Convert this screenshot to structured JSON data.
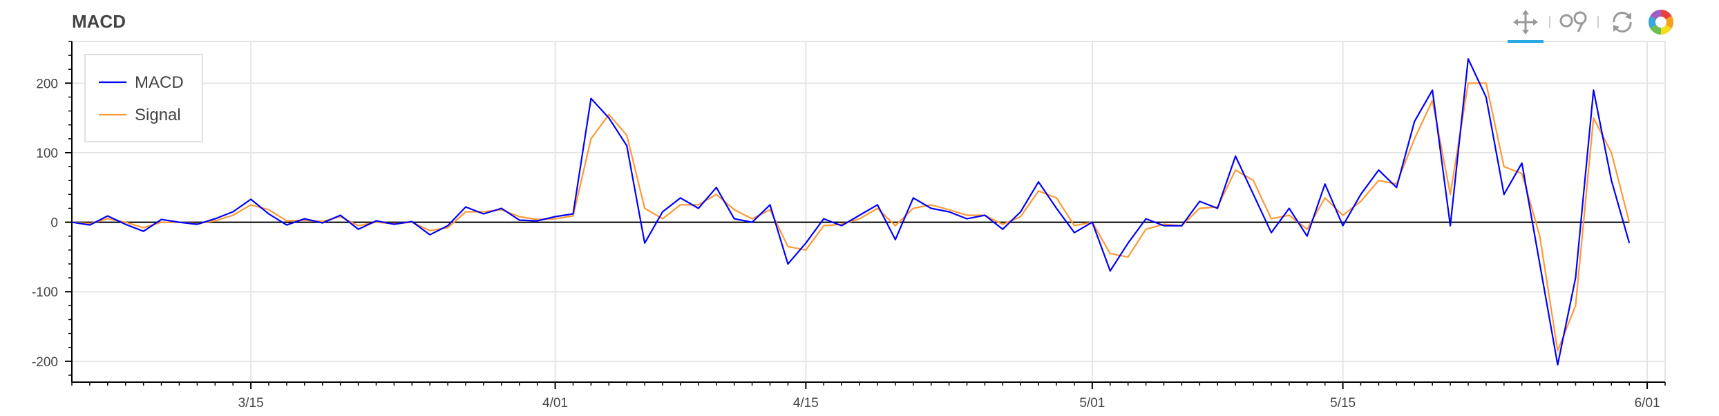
{
  "title": "MACD",
  "toolbar": {
    "tools": [
      "pan-icon",
      "wheel-zoom-icon",
      "reset-icon",
      "bokeh-logo-icon"
    ]
  },
  "colors": {
    "macd": "#0000ff",
    "signal": "#ff9933",
    "zero": "#000000",
    "grid": "#e5e5e5",
    "axis": "#000000"
  },
  "chart_data": {
    "type": "line",
    "title": "MACD",
    "xlabel": "",
    "ylabel": "",
    "ylim": [
      -230,
      260
    ],
    "xlim": [
      "2024-03-05",
      "2024-06-02"
    ],
    "x_ticks": [
      {
        "date": "2024-03-15",
        "label": "3/15"
      },
      {
        "date": "2024-04-01",
        "label": "4/01"
      },
      {
        "date": "2024-04-15",
        "label": "4/15"
      },
      {
        "date": "2024-05-01",
        "label": "5/01"
      },
      {
        "date": "2024-05-15",
        "label": "5/15"
      },
      {
        "date": "2024-06-01",
        "label": "6/01"
      }
    ],
    "y_ticks": [
      200,
      100,
      0,
      -100,
      -200
    ],
    "legend_position": "top-left",
    "series": [
      {
        "name": "MACD",
        "color": "#0000ff",
        "points": [
          [
            "2024-03-05",
            0
          ],
          [
            "2024-03-06",
            -4
          ],
          [
            "2024-03-07",
            9
          ],
          [
            "2024-03-08",
            -3
          ],
          [
            "2024-03-09",
            -13
          ],
          [
            "2024-03-10",
            4
          ],
          [
            "2024-03-11",
            0
          ],
          [
            "2024-03-12",
            -3
          ],
          [
            "2024-03-13",
            5
          ],
          [
            "2024-03-14",
            15
          ],
          [
            "2024-03-15",
            33
          ],
          [
            "2024-03-16",
            12
          ],
          [
            "2024-03-17",
            -4
          ],
          [
            "2024-03-18",
            5
          ],
          [
            "2024-03-19",
            -1
          ],
          [
            "2024-03-20",
            10
          ],
          [
            "2024-03-21",
            -10
          ],
          [
            "2024-03-22",
            2
          ],
          [
            "2024-03-23",
            -3
          ],
          [
            "2024-03-24",
            1
          ],
          [
            "2024-03-25",
            -18
          ],
          [
            "2024-03-26",
            -5
          ],
          [
            "2024-03-27",
            22
          ],
          [
            "2024-03-28",
            12
          ],
          [
            "2024-03-29",
            20
          ],
          [
            "2024-03-30",
            3
          ],
          [
            "2024-03-31",
            2
          ],
          [
            "2024-04-01",
            8
          ],
          [
            "2024-04-02",
            12
          ],
          [
            "2024-04-03",
            178
          ],
          [
            "2024-04-04",
            150
          ],
          [
            "2024-04-05",
            110
          ],
          [
            "2024-04-06",
            -30
          ],
          [
            "2024-04-07",
            15
          ],
          [
            "2024-04-08",
            35
          ],
          [
            "2024-04-09",
            20
          ],
          [
            "2024-04-10",
            50
          ],
          [
            "2024-04-11",
            5
          ],
          [
            "2024-04-12",
            0
          ],
          [
            "2024-04-13",
            25
          ],
          [
            "2024-04-14",
            -60
          ],
          [
            "2024-04-15",
            -30
          ],
          [
            "2024-04-16",
            5
          ],
          [
            "2024-04-17",
            -5
          ],
          [
            "2024-04-18",
            10
          ],
          [
            "2024-04-19",
            25
          ],
          [
            "2024-04-20",
            -25
          ],
          [
            "2024-04-21",
            35
          ],
          [
            "2024-04-22",
            20
          ],
          [
            "2024-04-23",
            15
          ],
          [
            "2024-04-24",
            5
          ],
          [
            "2024-04-25",
            10
          ],
          [
            "2024-04-26",
            -10
          ],
          [
            "2024-04-27",
            15
          ],
          [
            "2024-04-28",
            58
          ],
          [
            "2024-04-29",
            20
          ],
          [
            "2024-04-30",
            -15
          ],
          [
            "2024-05-01",
            0
          ],
          [
            "2024-05-02",
            -70
          ],
          [
            "2024-05-03",
            -30
          ],
          [
            "2024-05-04",
            5
          ],
          [
            "2024-05-05",
            -5
          ],
          [
            "2024-05-06",
            -5
          ],
          [
            "2024-05-07",
            30
          ],
          [
            "2024-05-08",
            20
          ],
          [
            "2024-05-09",
            95
          ],
          [
            "2024-05-10",
            40
          ],
          [
            "2024-05-11",
            -15
          ],
          [
            "2024-05-12",
            20
          ],
          [
            "2024-05-13",
            -20
          ],
          [
            "2024-05-14",
            55
          ],
          [
            "2024-05-15",
            -5
          ],
          [
            "2024-05-16",
            40
          ],
          [
            "2024-05-17",
            75
          ],
          [
            "2024-05-18",
            50
          ],
          [
            "2024-05-19",
            145
          ],
          [
            "2024-05-20",
            190
          ],
          [
            "2024-05-21",
            -5
          ],
          [
            "2024-05-22",
            235
          ],
          [
            "2024-05-23",
            180
          ],
          [
            "2024-05-24",
            40
          ],
          [
            "2024-05-25",
            85
          ],
          [
            "2024-05-26",
            -60
          ],
          [
            "2024-05-27",
            -205
          ],
          [
            "2024-05-28",
            -80
          ],
          [
            "2024-05-29",
            190
          ],
          [
            "2024-05-30",
            60
          ],
          [
            "2024-05-31",
            -30
          ]
        ]
      },
      {
        "name": "Signal",
        "color": "#ff9933",
        "points": [
          [
            "2024-03-05",
            0
          ],
          [
            "2024-03-06",
            -2
          ],
          [
            "2024-03-07",
            5
          ],
          [
            "2024-03-08",
            0
          ],
          [
            "2024-03-09",
            -8
          ],
          [
            "2024-03-10",
            0
          ],
          [
            "2024-03-11",
            0
          ],
          [
            "2024-03-12",
            -2
          ],
          [
            "2024-03-13",
            2
          ],
          [
            "2024-03-14",
            10
          ],
          [
            "2024-03-15",
            25
          ],
          [
            "2024-03-16",
            18
          ],
          [
            "2024-03-17",
            2
          ],
          [
            "2024-03-18",
            3
          ],
          [
            "2024-03-19",
            1
          ],
          [
            "2024-03-20",
            8
          ],
          [
            "2024-03-21",
            -5
          ],
          [
            "2024-03-22",
            0
          ],
          [
            "2024-03-23",
            -2
          ],
          [
            "2024-03-24",
            0
          ],
          [
            "2024-03-25",
            -12
          ],
          [
            "2024-03-26",
            -8
          ],
          [
            "2024-03-27",
            15
          ],
          [
            "2024-03-28",
            15
          ],
          [
            "2024-03-29",
            18
          ],
          [
            "2024-03-30",
            8
          ],
          [
            "2024-03-31",
            4
          ],
          [
            "2024-04-01",
            5
          ],
          [
            "2024-04-02",
            9
          ],
          [
            "2024-04-03",
            120
          ],
          [
            "2024-04-04",
            155
          ],
          [
            "2024-04-05",
            125
          ],
          [
            "2024-04-06",
            20
          ],
          [
            "2024-04-07",
            5
          ],
          [
            "2024-04-08",
            25
          ],
          [
            "2024-04-09",
            25
          ],
          [
            "2024-04-10",
            40
          ],
          [
            "2024-04-11",
            18
          ],
          [
            "2024-04-12",
            5
          ],
          [
            "2024-04-13",
            18
          ],
          [
            "2024-04-14",
            -35
          ],
          [
            "2024-04-15",
            -40
          ],
          [
            "2024-04-16",
            -5
          ],
          [
            "2024-04-17",
            -3
          ],
          [
            "2024-04-18",
            5
          ],
          [
            "2024-04-19",
            20
          ],
          [
            "2024-04-20",
            -5
          ],
          [
            "2024-04-21",
            20
          ],
          [
            "2024-04-22",
            25
          ],
          [
            "2024-04-23",
            18
          ],
          [
            "2024-04-24",
            10
          ],
          [
            "2024-04-25",
            10
          ],
          [
            "2024-04-26",
            -3
          ],
          [
            "2024-04-27",
            8
          ],
          [
            "2024-04-28",
            45
          ],
          [
            "2024-04-29",
            35
          ],
          [
            "2024-04-30",
            -5
          ],
          [
            "2024-05-01",
            0
          ],
          [
            "2024-05-02",
            -45
          ],
          [
            "2024-05-03",
            -50
          ],
          [
            "2024-05-04",
            -10
          ],
          [
            "2024-05-05",
            -3
          ],
          [
            "2024-05-06",
            -5
          ],
          [
            "2024-05-07",
            20
          ],
          [
            "2024-05-08",
            22
          ],
          [
            "2024-05-09",
            75
          ],
          [
            "2024-05-10",
            60
          ],
          [
            "2024-05-11",
            5
          ],
          [
            "2024-05-12",
            10
          ],
          [
            "2024-05-13",
            -10
          ],
          [
            "2024-05-14",
            35
          ],
          [
            "2024-05-15",
            10
          ],
          [
            "2024-05-16",
            30
          ],
          [
            "2024-05-17",
            60
          ],
          [
            "2024-05-18",
            55
          ],
          [
            "2024-05-19",
            120
          ],
          [
            "2024-05-20",
            175
          ],
          [
            "2024-05-21",
            40
          ],
          [
            "2024-05-22",
            200
          ],
          [
            "2024-05-23",
            200
          ],
          [
            "2024-05-24",
            80
          ],
          [
            "2024-05-25",
            70
          ],
          [
            "2024-05-26",
            -20
          ],
          [
            "2024-05-27",
            -185
          ],
          [
            "2024-05-28",
            -120
          ],
          [
            "2024-05-29",
            150
          ],
          [
            "2024-05-30",
            100
          ],
          [
            "2024-05-31",
            0
          ]
        ]
      }
    ]
  }
}
